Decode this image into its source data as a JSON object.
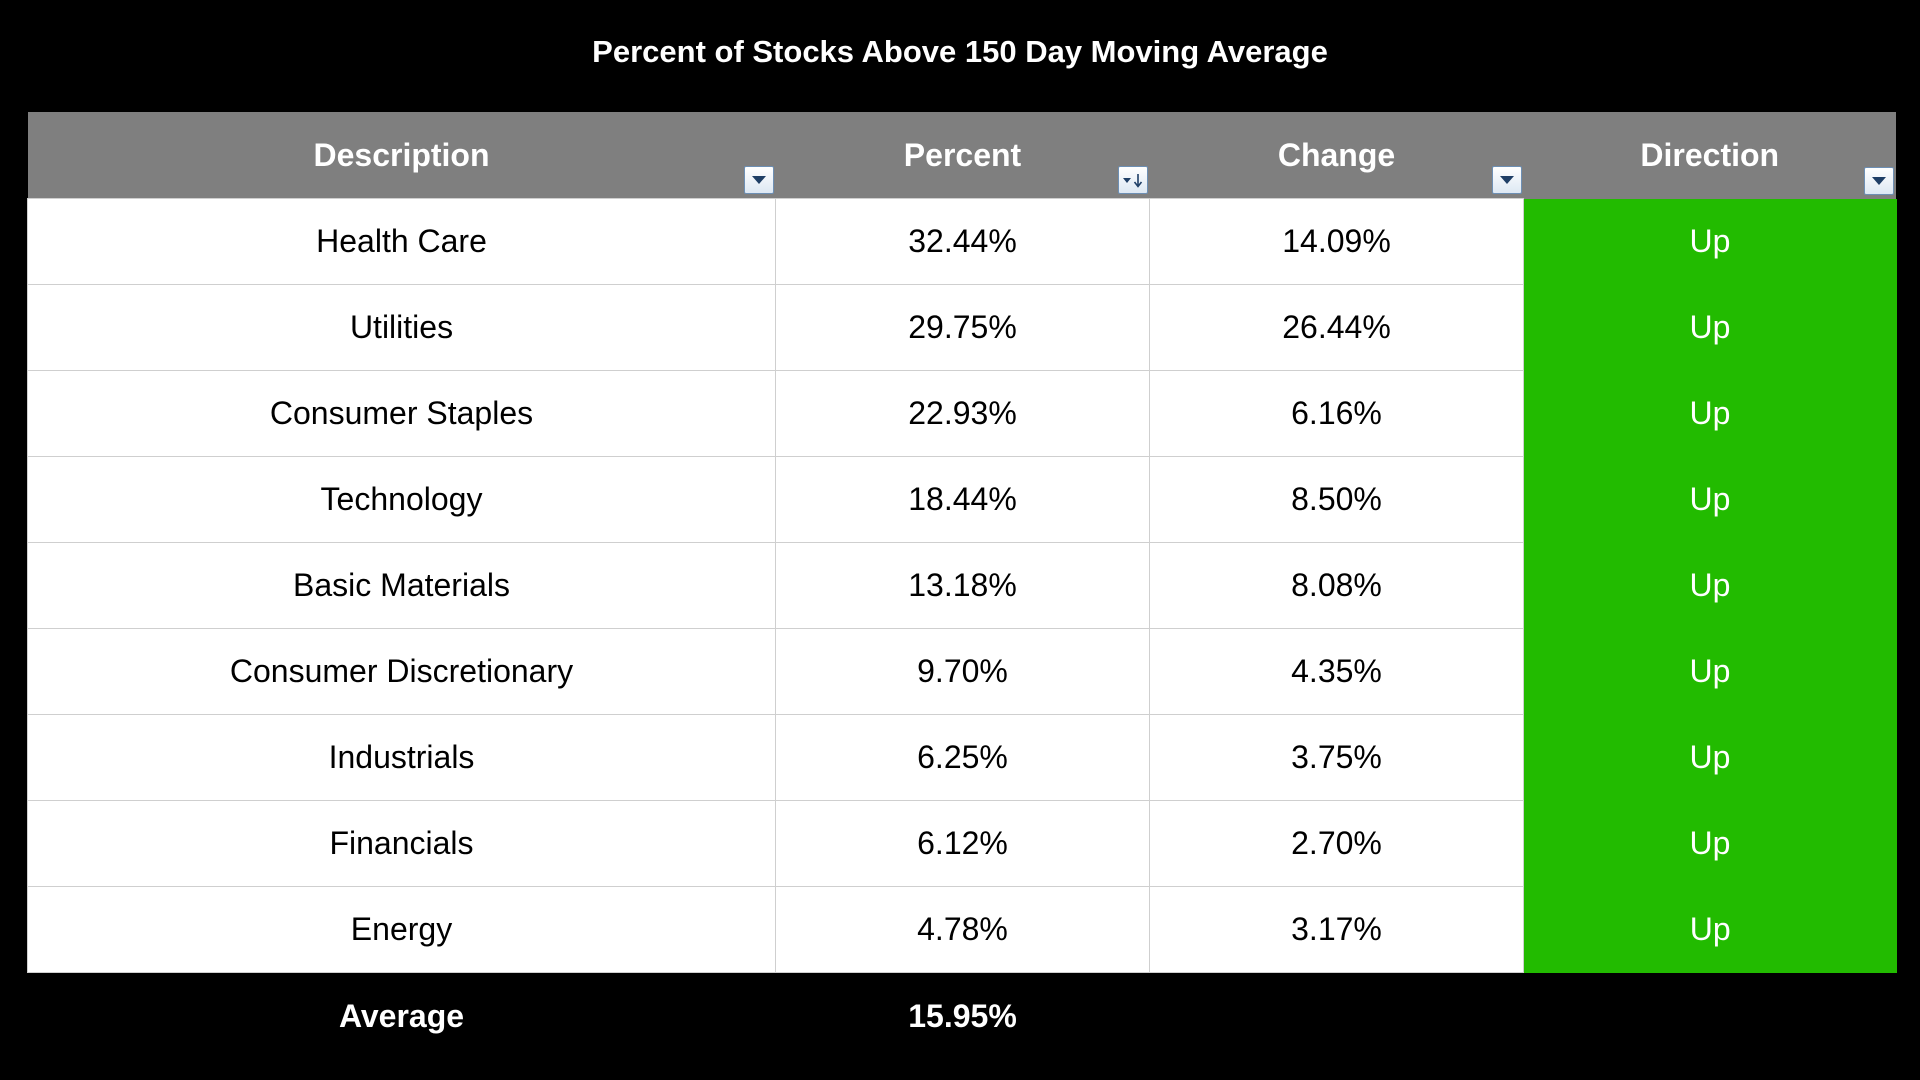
{
  "chart_data": {
    "type": "table",
    "title": "Percent of Stocks Above 150 Day Moving Average",
    "columns": [
      "Description",
      "Percent",
      "Change",
      "Direction"
    ],
    "rows": [
      {
        "description": "Health Care",
        "percent": "32.44%",
        "change": "14.09%",
        "direction": "Up"
      },
      {
        "description": "Utilities",
        "percent": "29.75%",
        "change": "26.44%",
        "direction": "Up"
      },
      {
        "description": "Consumer Staples",
        "percent": "22.93%",
        "change": "6.16%",
        "direction": "Up"
      },
      {
        "description": "Technology",
        "percent": "18.44%",
        "change": "8.50%",
        "direction": "Up"
      },
      {
        "description": "Basic Materials",
        "percent": "13.18%",
        "change": "8.08%",
        "direction": "Up"
      },
      {
        "description": "Consumer Discretionary",
        "percent": "9.70%",
        "change": "4.35%",
        "direction": "Up"
      },
      {
        "description": "Industrials",
        "percent": "6.25%",
        "change": "3.75%",
        "direction": "Up"
      },
      {
        "description": "Financials",
        "percent": "6.12%",
        "change": "2.70%",
        "direction": "Up"
      },
      {
        "description": "Energy",
        "percent": "4.78%",
        "change": "3.17%",
        "direction": "Up"
      }
    ],
    "footer": {
      "label": "Average",
      "percent": "15.95%"
    },
    "sorted_column": "Percent",
    "sort_order": "descending",
    "filter_icons": [
      "filter-dropdown-icon",
      "sort-descending-filter-icon",
      "filter-dropdown-icon",
      "filter-dropdown-icon"
    ]
  },
  "colors": {
    "background": "#000000",
    "header": "#7f7f7f",
    "direction_up": "#22bb00"
  }
}
